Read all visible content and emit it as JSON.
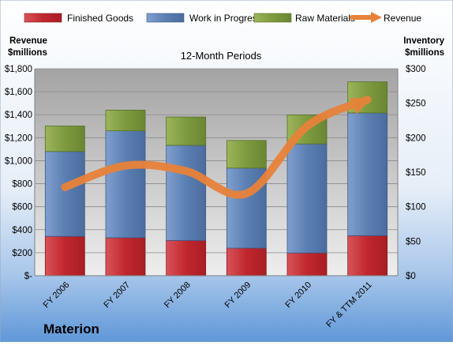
{
  "chart_data": {
    "type": "bar",
    "title": "12-Month Periods",
    "company": "Materion",
    "left_axis_label": [
      "Revenue",
      "$millions"
    ],
    "right_axis_label": [
      "Inventory",
      "$millions"
    ],
    "categories": [
      "FY 2006",
      "FY 2007",
      "FY 2008",
      "FY 2009",
      "FY 2010",
      "FY & TTM 2011"
    ],
    "left_axis": {
      "range": [
        0,
        1800
      ],
      "ticks": [
        0,
        200,
        400,
        600,
        800,
        1000,
        1200,
        1400,
        1600,
        1800
      ],
      "tick_labels": [
        "$-",
        "$200",
        "$400",
        "$600",
        "$800",
        "$1,000",
        "$1,200",
        "$1,400",
        "$1,600",
        "$1,800"
      ]
    },
    "right_axis": {
      "range": [
        0,
        300
      ],
      "ticks": [
        0,
        50,
        100,
        150,
        200,
        250,
        300
      ],
      "tick_labels": [
        "$0",
        "$50",
        "$100",
        "$150",
        "$200",
        "$250",
        "$300"
      ]
    },
    "stacked_series": [
      {
        "name": "Finished Goods",
        "color": "#c0272d",
        "values": [
          57,
          55,
          51,
          40,
          33,
          58
        ]
      },
      {
        "name": "Work in Progress",
        "color": "#5b7fb3",
        "values": [
          123,
          155,
          138,
          116,
          158,
          178
        ]
      },
      {
        "name": "Raw Materials",
        "color": "#7d9a3e",
        "values": [
          37,
          30,
          41,
          40,
          42,
          45
        ]
      }
    ],
    "line_series": {
      "name": "Revenue",
      "color": "#e8823a",
      "axis": "left",
      "values": [
        770,
        957,
        910,
        715,
        1300,
        1530
      ]
    },
    "grid": true,
    "legend_position": "top"
  }
}
